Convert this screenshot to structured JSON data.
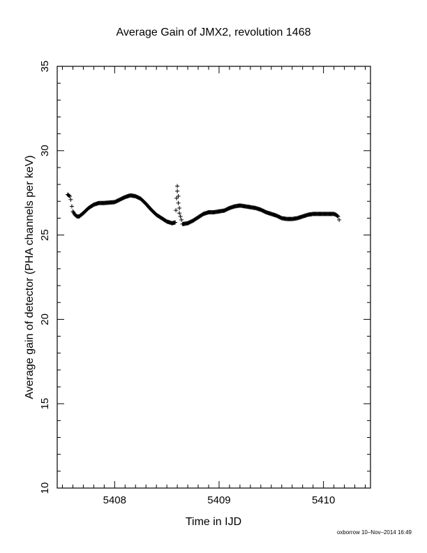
{
  "chart_data": {
    "type": "scatter",
    "title": "Average Gain of JMX2, revolution 1468",
    "xlabel": "Time in IJD",
    "ylabel": "Average gain of detector (PHA channels per keV)",
    "xlim": [
      5407.45,
      5410.45
    ],
    "ylim": [
      10,
      35
    ],
    "xticks": [
      5408,
      5409,
      5410
    ],
    "yticks": [
      10,
      15,
      20,
      25,
      30,
      35
    ],
    "marker": "+",
    "series": [
      {
        "color": "#000000",
        "x": [
          5407.55,
          5407.57,
          5407.58,
          5407.59,
          5407.6,
          5407.62,
          5407.64,
          5407.66,
          5407.7,
          5407.75,
          5407.8,
          5407.85,
          5407.9,
          5408.0,
          5408.05,
          5408.1,
          5408.15,
          5408.2,
          5408.25,
          5408.3,
          5408.35,
          5408.4,
          5408.45,
          5408.5,
          5408.55,
          5408.58,
          5408.6,
          5408.6,
          5408.61,
          5408.61,
          5408.62,
          5408.62,
          5408.63,
          5408.64,
          5408.65,
          5408.7,
          5408.75,
          5408.8,
          5408.85,
          5408.9,
          5408.95,
          5409.0,
          5409.05,
          5409.1,
          5409.15,
          5409.2,
          5409.25,
          5409.3,
          5409.35,
          5409.4,
          5409.45,
          5409.5,
          5409.55,
          5409.6,
          5409.65,
          5409.7,
          5409.75,
          5409.8,
          5409.85,
          5409.9,
          5409.95,
          5410.0,
          5410.05,
          5410.1,
          5410.12,
          5410.14,
          5410.15
        ],
        "y": [
          27.4,
          27.3,
          27.1,
          26.7,
          26.4,
          26.2,
          26.1,
          26.1,
          26.3,
          26.6,
          26.8,
          26.9,
          26.9,
          26.95,
          27.1,
          27.25,
          27.35,
          27.3,
          27.15,
          26.85,
          26.5,
          26.2,
          26.0,
          25.8,
          25.7,
          25.75,
          27.9,
          27.6,
          27.3,
          26.9,
          26.6,
          26.3,
          26.1,
          25.9,
          25.65,
          25.7,
          25.85,
          26.05,
          26.25,
          26.35,
          26.35,
          26.4,
          26.45,
          26.6,
          26.7,
          26.75,
          26.7,
          26.65,
          26.6,
          26.5,
          26.35,
          26.25,
          26.15,
          26.0,
          25.95,
          25.95,
          26.0,
          26.1,
          26.2,
          26.25,
          26.25,
          26.25,
          26.25,
          26.25,
          26.2,
          26.1,
          25.9
        ]
      }
    ]
  },
  "footer": "oxborrow 10–Nov–2014 16:49"
}
